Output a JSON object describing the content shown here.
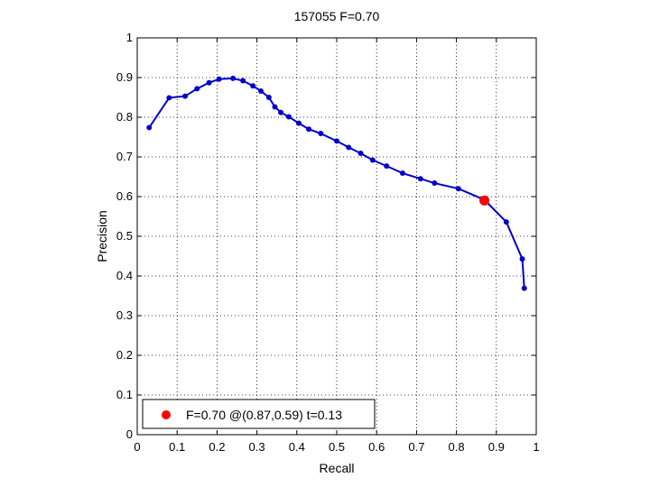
{
  "chart_data": {
    "type": "line",
    "title": "157055 F=0.70",
    "xlabel": "Recall",
    "ylabel": "Precision",
    "xlim": [
      0,
      1
    ],
    "ylim": [
      0,
      1
    ],
    "xticks": [
      0,
      0.1,
      0.2,
      0.3,
      0.4,
      0.5,
      0.6,
      0.7,
      0.8,
      0.9,
      1
    ],
    "yticks": [
      0,
      0.1,
      0.2,
      0.3,
      0.4,
      0.5,
      0.6,
      0.7,
      0.8,
      0.9,
      1
    ],
    "xtick_labels": [
      "0",
      "0.1",
      "0.2",
      "0.3",
      "0.4",
      "0.5",
      "0.6",
      "0.7",
      "0.8",
      "0.9",
      "1"
    ],
    "ytick_labels": [
      "0",
      "0.1",
      "0.2",
      "0.3",
      "0.4",
      "0.5",
      "0.6",
      "0.7",
      "0.8",
      "0.9",
      "1"
    ],
    "grid": true,
    "legend_position": "bottom-left",
    "series": [
      {
        "color": "#0000cc",
        "marker": "circle",
        "points": [
          [
            0.03,
            0.774
          ],
          [
            0.08,
            0.849
          ],
          [
            0.12,
            0.853
          ],
          [
            0.15,
            0.872
          ],
          [
            0.18,
            0.887
          ],
          [
            0.205,
            0.896
          ],
          [
            0.24,
            0.898
          ],
          [
            0.265,
            0.892
          ],
          [
            0.29,
            0.879
          ],
          [
            0.31,
            0.866
          ],
          [
            0.33,
            0.85
          ],
          [
            0.345,
            0.826
          ],
          [
            0.36,
            0.812
          ],
          [
            0.38,
            0.801
          ],
          [
            0.405,
            0.785
          ],
          [
            0.43,
            0.77
          ],
          [
            0.46,
            0.759
          ],
          [
            0.5,
            0.74
          ],
          [
            0.53,
            0.724
          ],
          [
            0.56,
            0.709
          ],
          [
            0.59,
            0.692
          ],
          [
            0.625,
            0.677
          ],
          [
            0.665,
            0.659
          ],
          [
            0.71,
            0.645
          ],
          [
            0.745,
            0.634
          ],
          [
            0.805,
            0.62
          ],
          [
            0.87,
            0.592
          ],
          [
            0.925,
            0.536
          ],
          [
            0.965,
            0.443
          ],
          [
            0.97,
            0.369
          ]
        ]
      }
    ],
    "highlight": {
      "x": 0.87,
      "y": 0.59,
      "color": "#ff0000",
      "label": "F=0.70 @(0.87,0.59) t=0.13"
    }
  }
}
